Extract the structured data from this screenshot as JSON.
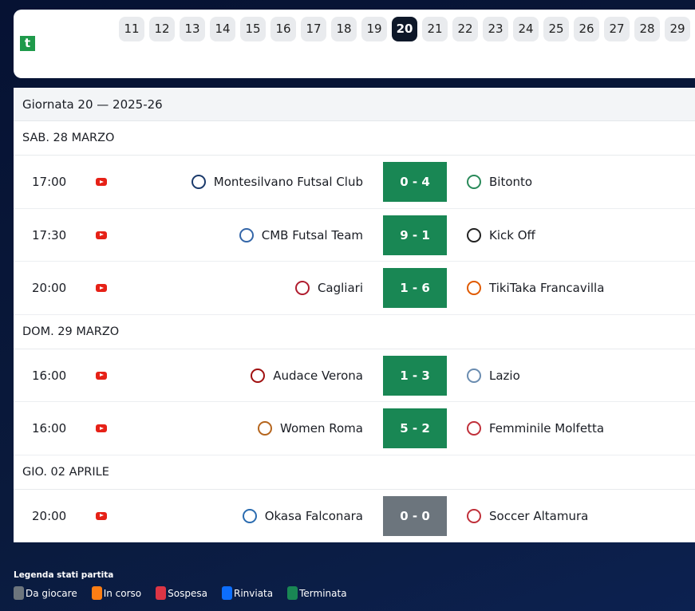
{
  "matchdays": [
    "11",
    "12",
    "13",
    "14",
    "15",
    "16",
    "17",
    "18",
    "19",
    "20",
    "21",
    "22",
    "23",
    "24",
    "25",
    "26",
    "27",
    "28",
    "29"
  ],
  "active_matchday": "20",
  "logo_text": "t",
  "title": "Giornata 20 — 2025-26",
  "groups": [
    {
      "date": "SAB. 28 MARZO",
      "matches": [
        {
          "time": "17:00",
          "home": "Montesilvano Futsal Club",
          "score": "0 - 4",
          "away": "Bitonto",
          "status": "Terminata"
        },
        {
          "time": "17:30",
          "home": "CMB Futsal Team",
          "score": "9 - 1",
          "away": "Kick Off",
          "status": "Terminata"
        },
        {
          "time": "20:00",
          "home": "Cagliari",
          "score": "1 - 6",
          "away": "TikiTaka Francavilla",
          "status": "Terminata"
        }
      ]
    },
    {
      "date": "DOM. 29 MARZO",
      "matches": [
        {
          "time": "16:00",
          "home": "Audace Verona",
          "score": "1 - 3",
          "away": "Lazio",
          "status": "Terminata"
        },
        {
          "time": "16:00",
          "home": "Women Roma",
          "score": "5 - 2",
          "away": "Femminile Molfetta",
          "status": "Terminata"
        }
      ]
    },
    {
      "date": "GIO. 02 APRILE",
      "matches": [
        {
          "time": "20:00",
          "home": "Okasa Falconara",
          "score": "0 - 0",
          "away": "Soccer Altamura",
          "status": "Da giocare"
        }
      ]
    }
  ],
  "legend": {
    "title": "Legenda stati partita",
    "items": [
      {
        "label": "Da giocare",
        "color": "#6c757d"
      },
      {
        "label": "In corso",
        "color": "#fd7e14"
      },
      {
        "label": "Sospesa",
        "color": "#dc3545"
      },
      {
        "label": "Rinviata",
        "color": "#0d6efd"
      },
      {
        "label": "Terminata",
        "color": "#198754"
      }
    ]
  }
}
